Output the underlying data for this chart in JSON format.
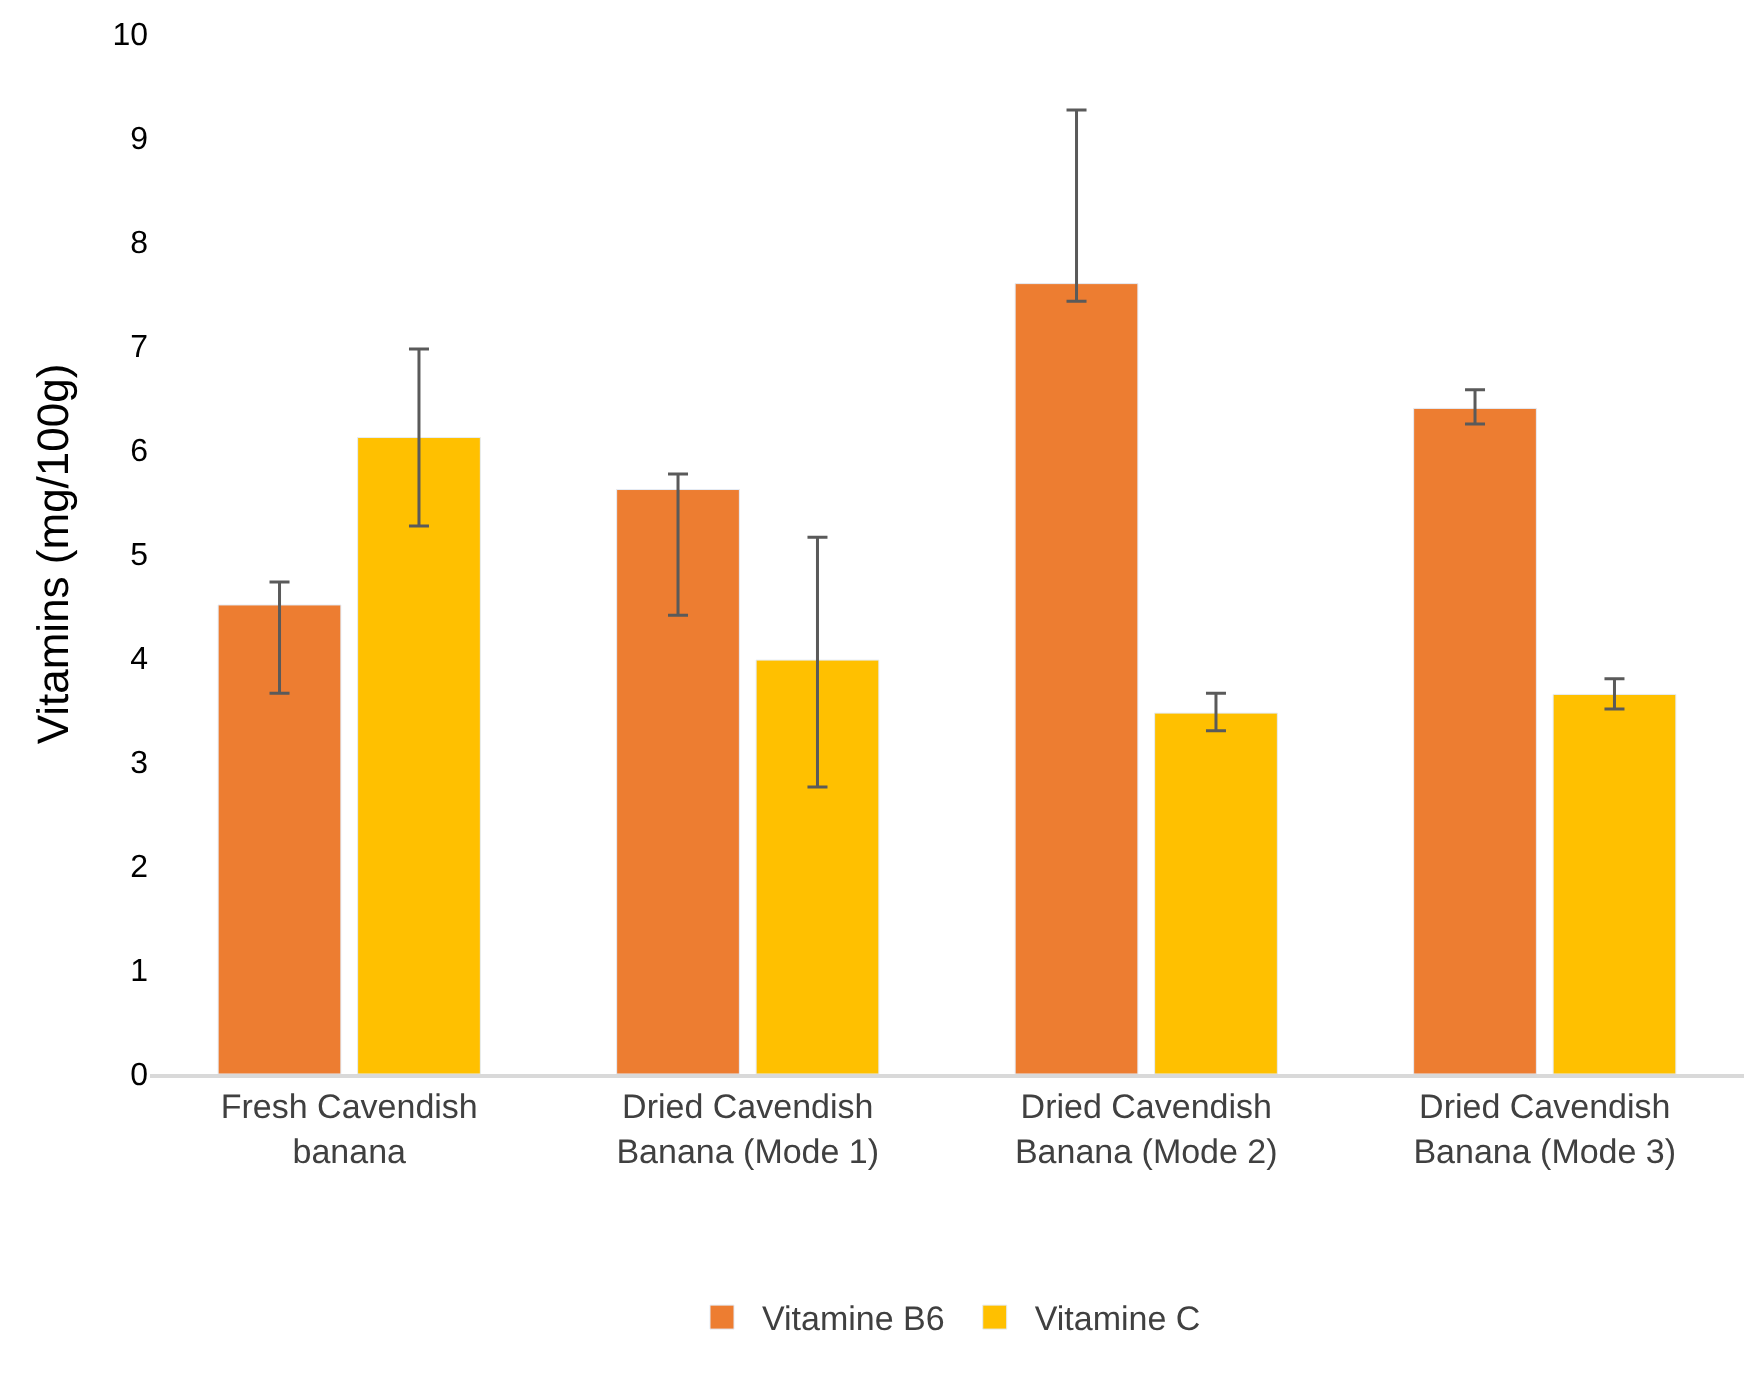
{
  "chart_data": {
    "type": "bar",
    "ylabel": "Vitamins (mg/100g)",
    "categories": [
      "Fresh Cavendish banana",
      "Dried Cavendish Banana (Mode 1)",
      "Dried Cavendish Banana (Mode 2)",
      "Dried Cavendish Banana (Mode 3)"
    ],
    "series": [
      {
        "name": "Vitamine B6",
        "color": "#ed7d31",
        "values": [
          4.51,
          5.62,
          7.6,
          6.4
        ],
        "errors": [
          [
            3.66,
            4.73
          ],
          [
            4.41,
            5.77
          ],
          [
            7.43,
            9.27
          ],
          [
            6.25,
            6.58
          ]
        ]
      },
      {
        "name": "Vitamine C",
        "color": "#ffc000",
        "values": [
          6.12,
          3.98,
          3.47,
          3.65
        ],
        "errors": [
          [
            5.27,
            6.97
          ],
          [
            2.76,
            5.16
          ],
          [
            3.3,
            3.66
          ],
          [
            3.51,
            3.8
          ]
        ]
      }
    ],
    "ylim": [
      0,
      10
    ],
    "yticks": [
      0,
      1,
      2,
      3,
      4,
      5,
      6,
      7,
      8,
      9,
      10
    ],
    "grid": false,
    "legend": "bottom"
  }
}
